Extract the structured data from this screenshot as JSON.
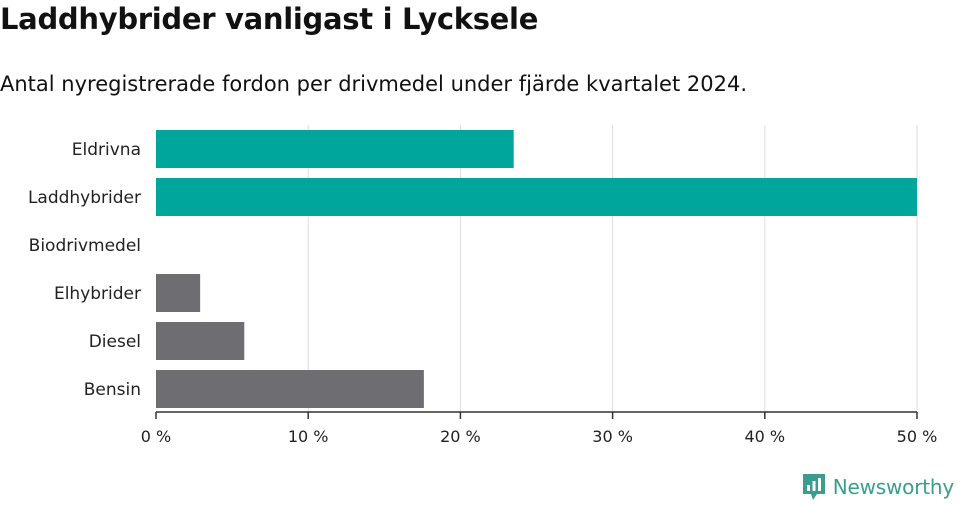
{
  "title": "Laddhybrider vanligast i Lycksele",
  "subtitle": "Antal nyregistrerade fordon per drivmedel under fjärde kvartalet 2024.",
  "brand": {
    "name": "Newsworthy",
    "color": "#3a9e8f",
    "icon": "bar-chart-logo-icon"
  },
  "colors": {
    "highlight": "#00a59b",
    "default": "#6e6d72",
    "grid": "#dddddd",
    "axis": "#333333"
  },
  "chart_data": {
    "type": "bar",
    "orientation": "horizontal",
    "categories": [
      "Eldrivna",
      "Laddhybrider",
      "Biodrivmedel",
      "Elhybrider",
      "Diesel",
      "Bensin"
    ],
    "values": [
      23.5,
      50,
      0,
      2.9,
      5.8,
      17.6
    ],
    "highlighted": [
      true,
      true,
      false,
      false,
      false,
      false
    ],
    "xlim": [
      0,
      50
    ],
    "xticks": [
      0,
      10,
      20,
      30,
      40,
      50
    ],
    "tick_labels": [
      "0 %",
      "10 %",
      "20 %",
      "30 %",
      "40 %",
      "50 %"
    ],
    "grid": true,
    "xlabel": "",
    "ylabel": ""
  }
}
